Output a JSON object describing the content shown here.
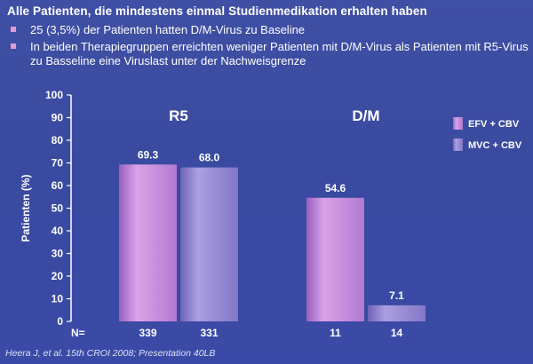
{
  "header": {
    "title": "Alle Patienten, die mindestens einmal Studienmedikation erhalten haben",
    "bullets": [
      "25 (3,5%) der Patienten hatten D/M-Virus zu Baseline",
      "In beiden Therapiegruppen erreichten weniger Patienten mit D/M-Virus als Patienten mit R5-Virus zu Basseline eine Viruslast unter der Nachweisgrenze"
    ]
  },
  "citation": "Heera J, et al. 15th CROI 2008; Presentation 40LB",
  "colors": {
    "efv": "#c080d8",
    "mvc": "#8e80d2",
    "bullet": "#e49ad6"
  },
  "chart_data": {
    "type": "bar",
    "ylabel": "Patienten (%)",
    "ylim": [
      0,
      100
    ],
    "yticks": [
      0,
      10,
      20,
      30,
      40,
      50,
      60,
      70,
      80,
      90,
      100
    ],
    "grid": false,
    "legend_position": "right",
    "categories": [
      "R5",
      "D/M"
    ],
    "series": [
      {
        "name": "EFV + CBV",
        "values": [
          69.3,
          54.6
        ],
        "n": [
          "339",
          "11"
        ]
      },
      {
        "name": "MVC + CBV",
        "values": [
          68.0,
          7.1
        ],
        "n": [
          "331",
          "14"
        ]
      }
    ],
    "value_labels": [
      [
        "69.3",
        "54.6"
      ],
      [
        "68.0",
        "7.1"
      ]
    ],
    "n_label": "N="
  }
}
